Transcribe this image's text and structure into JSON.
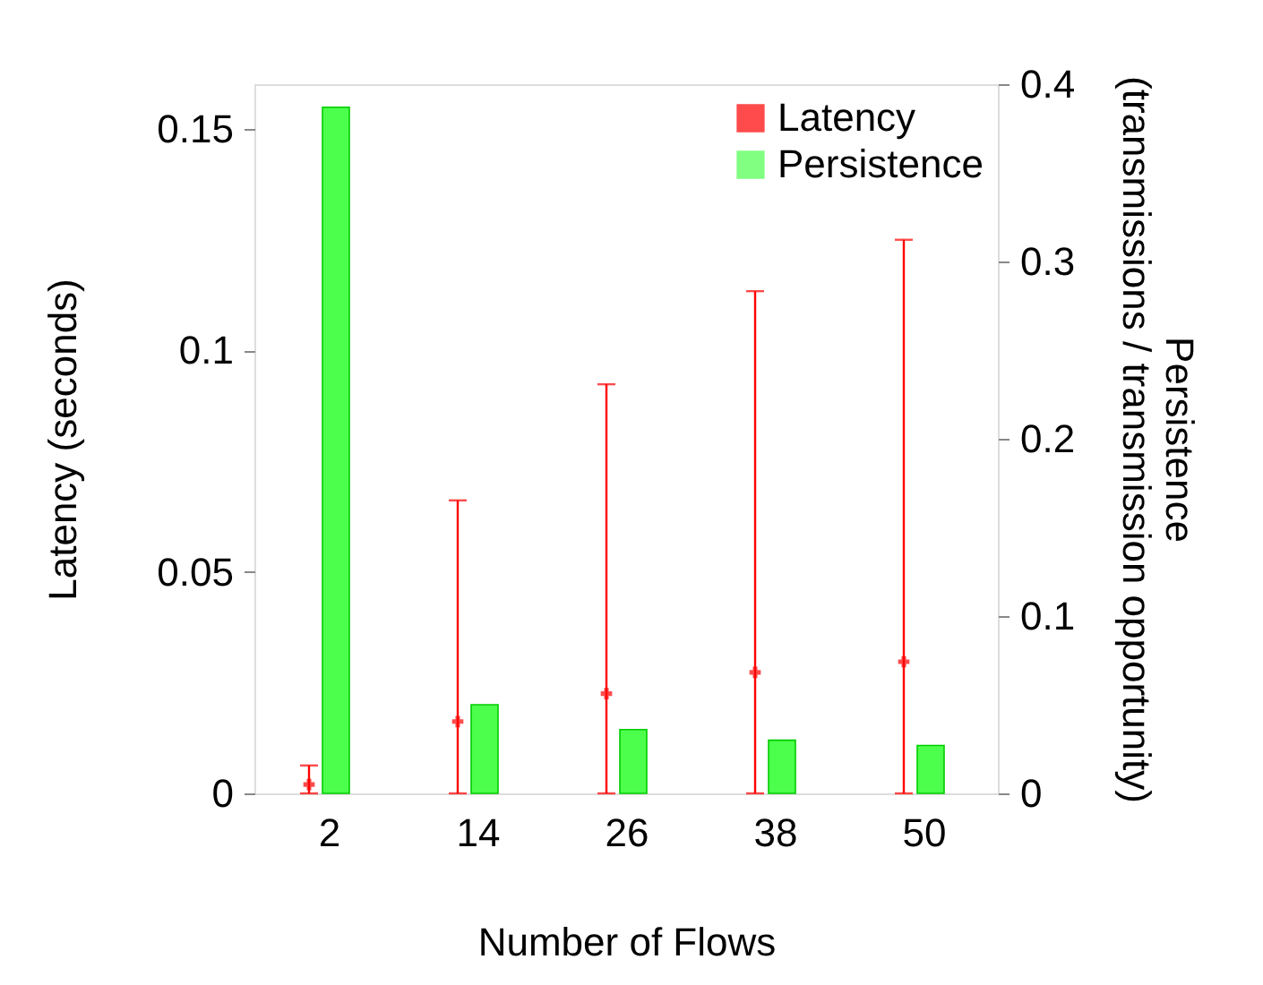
{
  "chart_data": {
    "type": "bar",
    "xlabel": "Number of Flows",
    "ylabel": "Latency (seconds)",
    "y2label": "Persistence\n(transmissions / transmission opportunity)",
    "categories": [
      "2",
      "14",
      "26",
      "38",
      "50"
    ],
    "series": [
      {
        "name": "Latency",
        "type": "scatter",
        "color": "#ff0000",
        "values": [
          0.002,
          0.0162,
          0.0225,
          0.0273,
          0.0297
        ],
        "errors": [
          [
            0,
            0.0063
          ],
          [
            0,
            0.0661
          ],
          [
            0,
            0.0923
          ],
          [
            0,
            0.1133
          ],
          [
            0,
            0.1249
          ]
        ]
      },
      {
        "name": "Persistence",
        "axis": "y2",
        "color": "#4dff4d",
        "values": [
          0.387,
          0.05,
          0.036,
          0.03,
          0.027
        ]
      }
    ],
    "ylim": [
      0,
      0.16
    ],
    "yticks": [
      0,
      0.05,
      0.1,
      0.15
    ],
    "y2lim": [
      0,
      0.4
    ],
    "y2ticks": [
      0,
      0.1,
      0.2,
      0.3,
      0.4
    ],
    "marker": "cross",
    "grid": false,
    "legend": "top right"
  }
}
